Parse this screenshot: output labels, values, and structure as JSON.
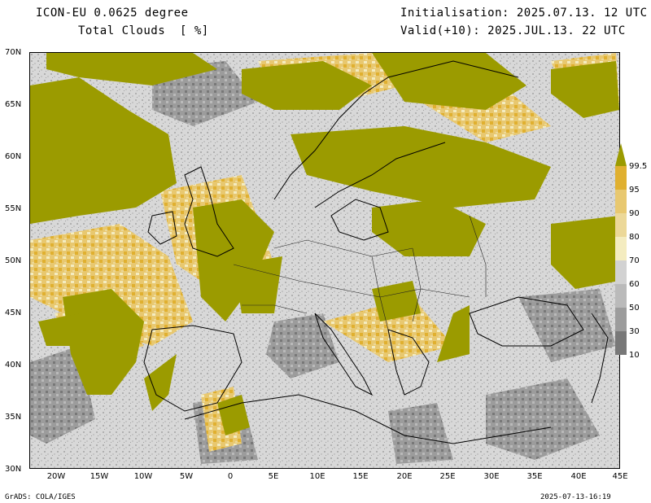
{
  "header": {
    "model": "ICON-EU 0.0625 degree",
    "variable": "Total Clouds  [ %]",
    "initialisation": "Initialisation: 2025.07.13. 12 UTC",
    "valid": "Valid(+10): 2025.JUL.13. 22 UTC"
  },
  "map": {
    "lat_ticks": [
      "70N",
      "65N",
      "60N",
      "55N",
      "50N",
      "45N",
      "40N",
      "35N",
      "30N"
    ],
    "lon_ticks": [
      "20W",
      "15W",
      "10W",
      "5W",
      "0",
      "5E",
      "10E",
      "15E",
      "20E",
      "25E",
      "30E",
      "35E",
      "40E",
      "45E"
    ],
    "lat_range": [
      30,
      70
    ],
    "lon_range": [
      -23,
      45
    ]
  },
  "legend": {
    "labels": [
      "99.5",
      "95",
      "90",
      "80",
      "70",
      "60",
      "50",
      "30",
      "10"
    ],
    "colors": [
      "#9b9b00",
      "#e0b030",
      "#e8c870",
      "#ecd898",
      "#f4ecc0",
      "#d2d2d2",
      "#bababa",
      "#9c9c9c",
      "#787878"
    ]
  },
  "colors": {
    "cloud_high": "#9b9b00",
    "cloud_mid": "#e0b030",
    "background_low": "#d8d8d8"
  },
  "footer": {
    "left": "GrADS: COLA/IGES",
    "right": "2025-07-13-16:19"
  }
}
